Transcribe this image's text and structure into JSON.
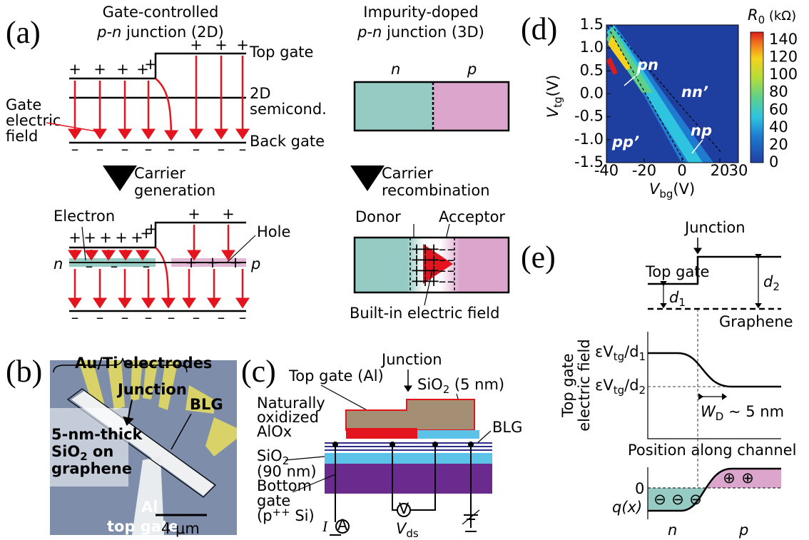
{
  "a": {
    "label": "(a)",
    "left_title": [
      "Gate-controlled",
      "p-n",
      " junction (2D)"
    ],
    "right_title": [
      "Impurity-doped",
      "p-n",
      " junction (3D)"
    ],
    "top_gate": "Top gate",
    "semicond": [
      "2D",
      "semicond."
    ],
    "back_gate": "Back gate",
    "gate_field": [
      "Gate",
      "electric",
      "field"
    ],
    "plus": "+",
    "minus": "–",
    "step_left": [
      "Carrier",
      "generation"
    ],
    "step_right": [
      "Carrier",
      "recombination"
    ],
    "electron": "Electron",
    "hole": "Hole",
    "n": "n",
    "p": "p",
    "donor": "Donor",
    "acceptor": "Acceptor",
    "built_in": "Built-in electric field"
  },
  "b": {
    "label": "(b)",
    "electrodes": "Au/Ti electrodes",
    "junction": "Junction",
    "blg": "BLG",
    "oxide": [
      "5-nm-thick",
      "SiO",
      "2",
      " on",
      "graphene"
    ],
    "gate": [
      "Al",
      "top gate"
    ],
    "scale": "4 μm"
  },
  "c": {
    "label": "(c)",
    "junction": "Junction",
    "top_gate": "Top gate (Al)",
    "thin_oxide": [
      "SiO",
      "2",
      " (5 nm)"
    ],
    "alox": [
      "Naturally",
      "oxidized",
      "AlOx"
    ],
    "blg": "BLG",
    "thick_oxide": [
      "SiO",
      "2",
      "(90 nm)"
    ],
    "bottom_gate": [
      "Bottom",
      "gate",
      "(p",
      "++",
      " Si)"
    ],
    "current": "I",
    "ammeter": "A",
    "voltmeter": "V",
    "vds": [
      "V",
      "ds"
    ]
  },
  "d": {
    "label": "(d)",
    "cbar_title": [
      "R",
      "0",
      " (kΩ)"
    ],
    "ylabel": [
      "V",
      "tg",
      "(V)"
    ],
    "xlabel": [
      "V",
      "bg",
      "(V)"
    ],
    "yticks": [
      "1.5",
      "1.0",
      "0.5",
      "0.0",
      "-0.5",
      "-1.0",
      "-1.5"
    ],
    "xticks": [
      "-40",
      "-20",
      "0",
      "20",
      "30"
    ],
    "cbar_ticks": [
      "140",
      "120",
      "100",
      "80",
      "60",
      "40",
      "20",
      "0"
    ],
    "regions": [
      "pn",
      "nn’",
      "pp’",
      "np"
    ]
  },
  "e": {
    "label": "(e)",
    "junction": "Junction",
    "top_gate": "Top gate",
    "d1": [
      "d",
      "1"
    ],
    "d2": [
      "d",
      "2"
    ],
    "graphene": "Graphene",
    "ylabel": [
      "Top gate",
      "electric field"
    ],
    "field1": [
      "εV",
      "tg",
      "/d",
      "1"
    ],
    "field2": [
      "εV",
      "tg",
      "/d",
      "2"
    ],
    "wd": [
      "W",
      "D",
      " ~ 5 nm"
    ],
    "xlabel": "Position along channel",
    "zero": "0",
    "charge": "q(x)",
    "n": "n",
    "p": "p",
    "neg": "⊖",
    "pos": "⊕"
  }
}
